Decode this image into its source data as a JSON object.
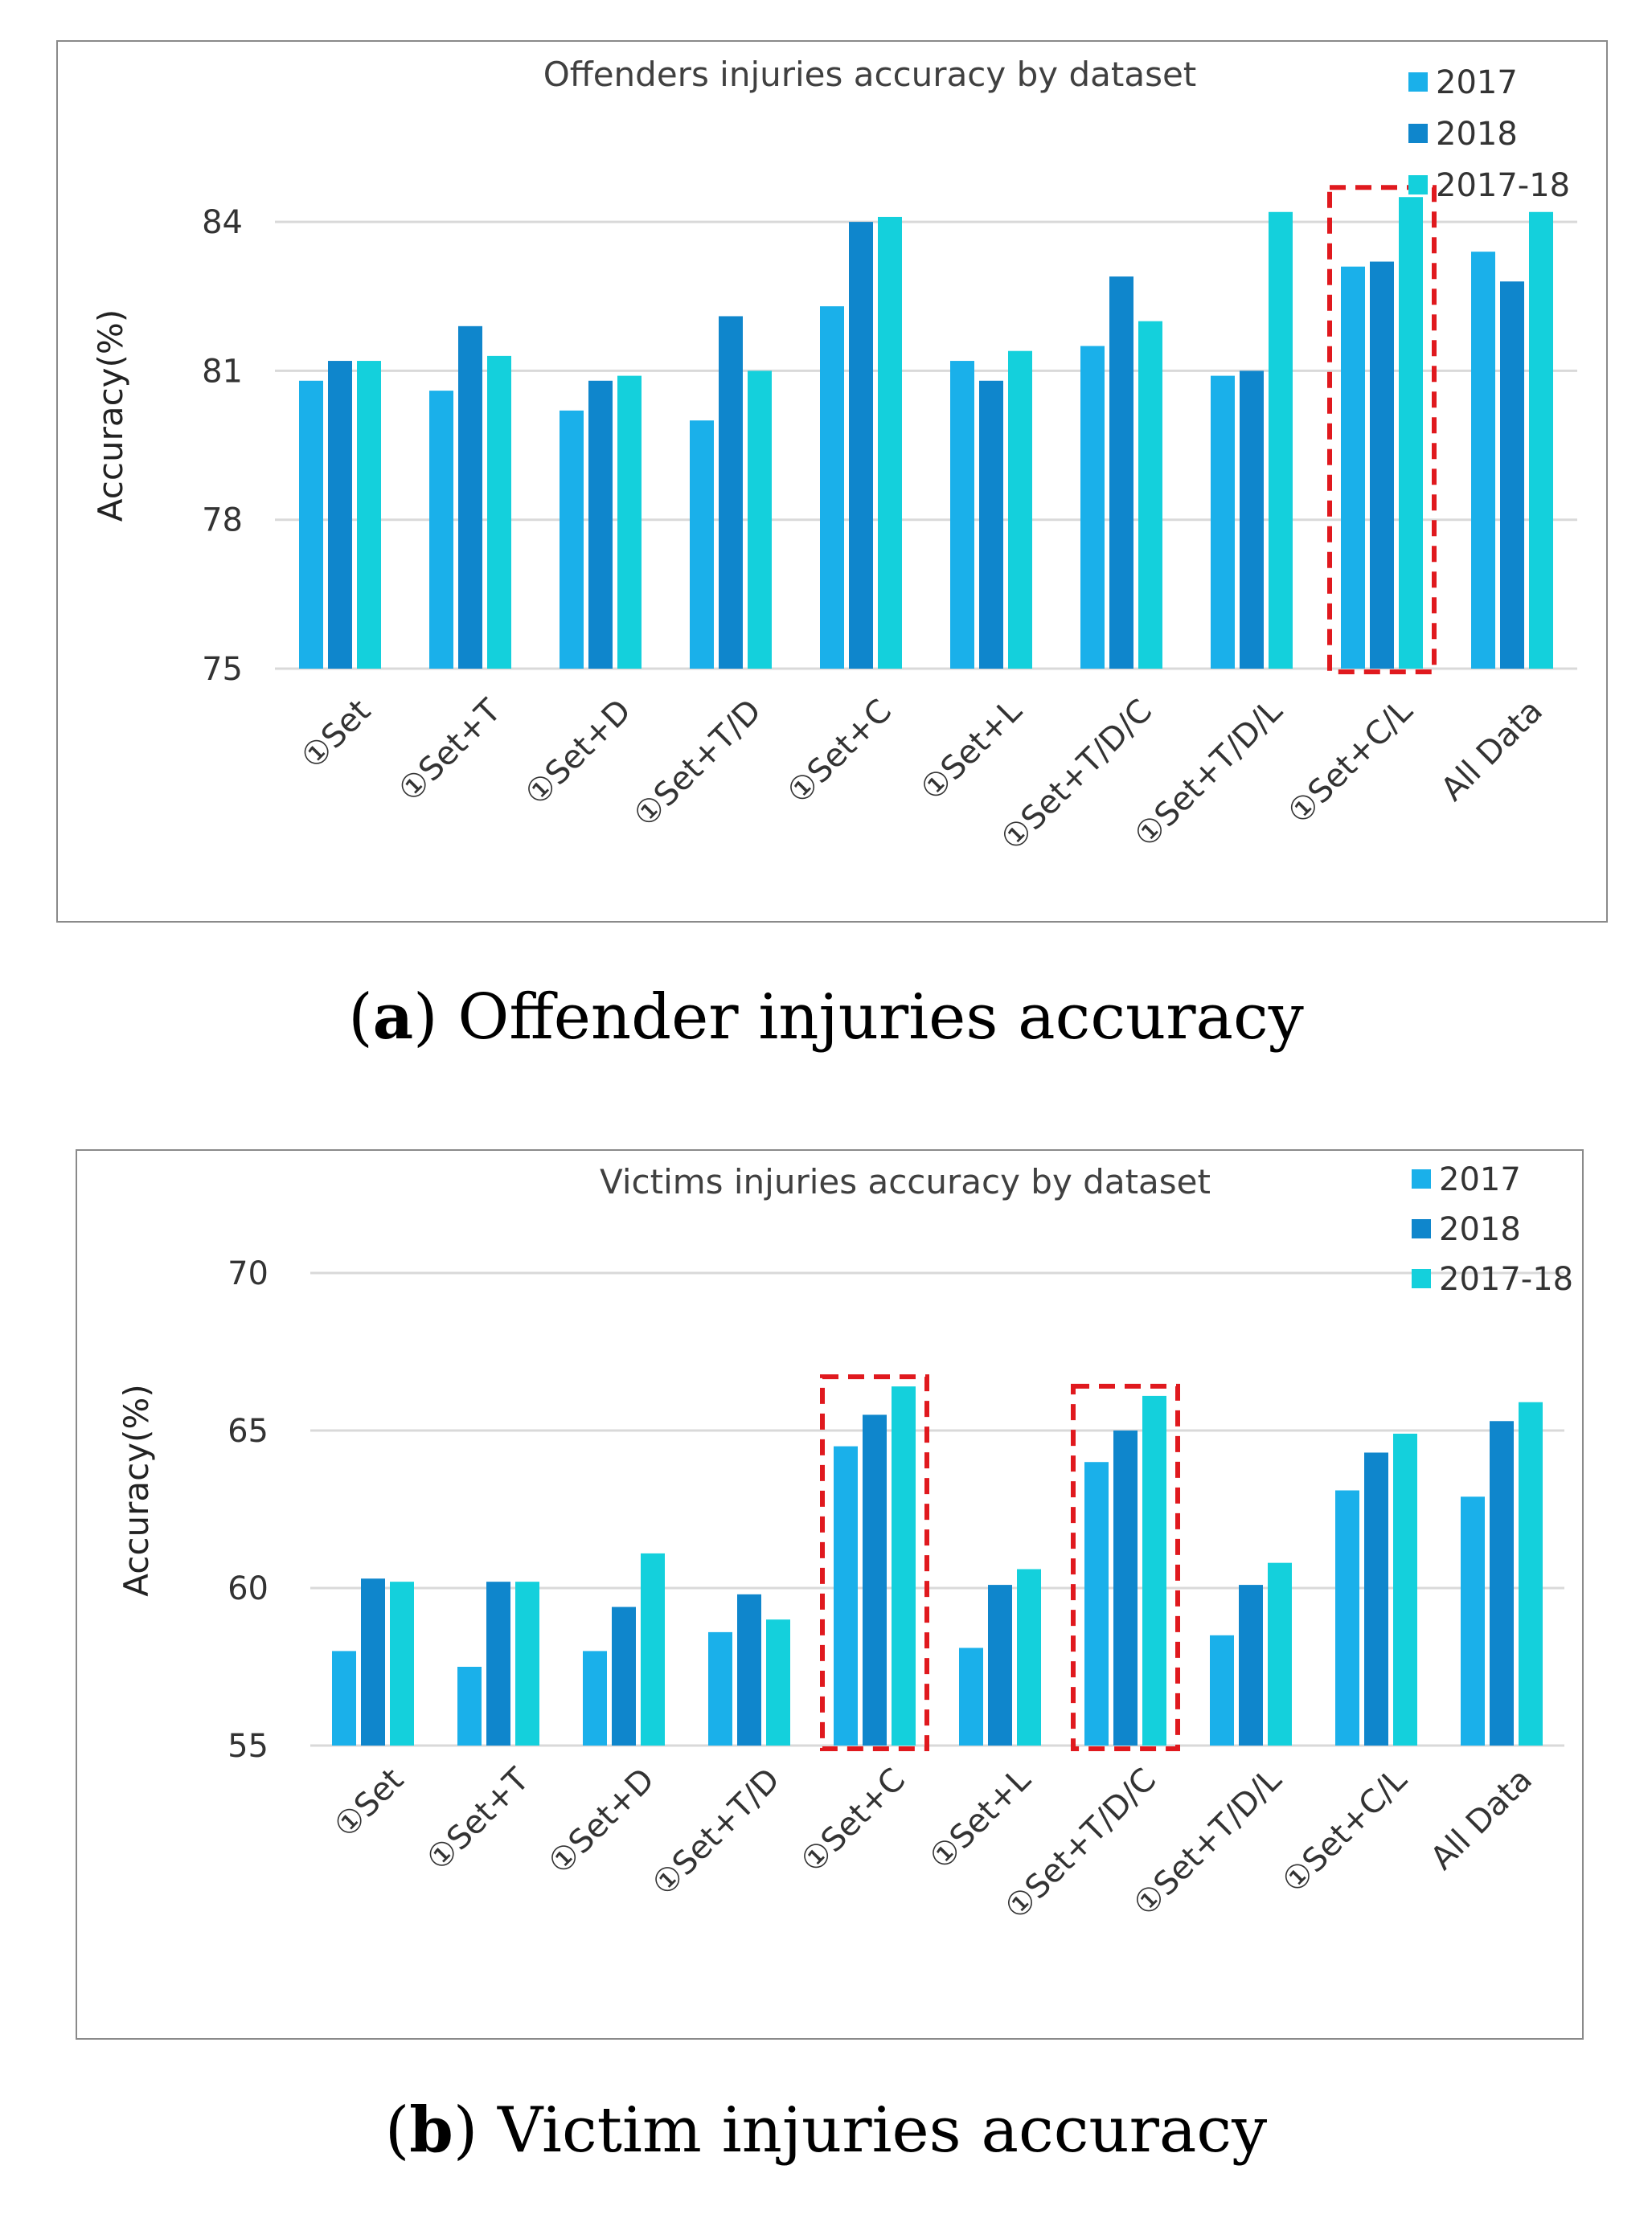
{
  "chart_data": [
    {
      "type": "bar",
      "title": "Offenders injuries accuracy by dataset",
      "xlabel": "",
      "ylabel": "Accuracy(%)",
      "ylim": [
        75,
        85.2
      ],
      "yticks": [
        75,
        78,
        81,
        84
      ],
      "grid": true,
      "legend_position": "top-right",
      "categories": [
        "①Set",
        "①Set+T",
        "①Set+D",
        "①Set+T/D",
        "①Set+C",
        "①Set+L",
        "①Set+T/D/C",
        "①Set+T/D/L",
        "①Set+C/L",
        "All Data"
      ],
      "series": [
        {
          "name": "2017",
          "color": "#1ab0ea",
          "values": [
            80.8,
            80.6,
            80.2,
            80.0,
            82.3,
            81.2,
            81.5,
            80.9,
            83.1,
            83.4
          ]
        },
        {
          "name": "2018",
          "color": "#0f86cc",
          "values": [
            81.2,
            81.9,
            80.8,
            82.1,
            84.0,
            80.8,
            82.9,
            81.0,
            83.2,
            82.8
          ]
        },
        {
          "name": "2017-18",
          "color": "#14d0dc",
          "values": [
            81.2,
            81.3,
            80.9,
            81.0,
            84.1,
            81.4,
            82.0,
            84.2,
            84.5,
            84.2
          ]
        }
      ],
      "highlighted_categories": [
        "①Set+C/L"
      ]
    },
    {
      "type": "bar",
      "title": "Victims injuries accuracy by dataset",
      "xlabel": "",
      "ylabel": "Accuracy(%)",
      "ylim": [
        55,
        71.2
      ],
      "yticks": [
        55,
        60,
        65,
        70
      ],
      "grid": true,
      "legend_position": "top-right",
      "categories": [
        "①Set",
        "①Set+T",
        "①Set+D",
        "①Set+T/D",
        "①Set+C",
        "①Set+L",
        "①Set+T/D/C",
        "①Set+T/D/L",
        "①Set+C/L",
        "All Data"
      ],
      "series": [
        {
          "name": "2017",
          "color": "#1ab0ea",
          "values": [
            58.0,
            57.5,
            58.0,
            58.6,
            64.5,
            58.1,
            64.0,
            58.5,
            63.1,
            62.9
          ]
        },
        {
          "name": "2018",
          "color": "#0f86cc",
          "values": [
            60.3,
            60.2,
            59.4,
            59.8,
            65.5,
            60.1,
            65.0,
            60.1,
            64.3,
            65.3
          ]
        },
        {
          "name": "2017-18",
          "color": "#14d0dc",
          "values": [
            60.2,
            60.2,
            61.1,
            59.0,
            66.4,
            60.6,
            66.1,
            60.8,
            64.9,
            65.9
          ]
        }
      ],
      "highlighted_categories": [
        "①Set+C",
        "①Set+T/D/C"
      ]
    }
  ],
  "captions": [
    {
      "letter": "a",
      "text": ") Offender injuries accuracy"
    },
    {
      "letter": "b",
      "text": ") Victim injuries accuracy"
    }
  ],
  "caption_open_paren": "("
}
